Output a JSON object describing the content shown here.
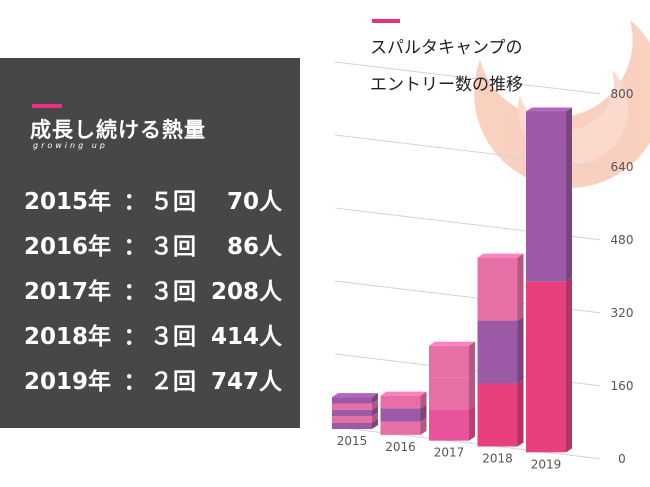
{
  "panel": {
    "title": "成長し続ける熱量",
    "subtitle": "growing up",
    "stats": [
      {
        "year": "2015年",
        "sep": "：",
        "count": "５回",
        "people": "70人"
      },
      {
        "year": "2016年",
        "sep": "：",
        "count": "３回",
        "people": "86人"
      },
      {
        "year": "2017年",
        "sep": "：",
        "count": "３回",
        "people": "208人"
      },
      {
        "year": "2018年",
        "sep": "：",
        "count": "３回",
        "people": "414人"
      },
      {
        "year": "2019年",
        "sep": "：",
        "count": "２回",
        "people": "747人"
      }
    ]
  },
  "chart_data": {
    "type": "bar",
    "stacked": true,
    "title_line1": "スパルタキャンプの",
    "title_line2": "エントリー数の推移",
    "categories": [
      "2015",
      "2016",
      "2017",
      "2018",
      "2019"
    ],
    "totals": [
      70,
      86,
      208,
      414,
      747
    ],
    "segments": [
      [
        {
          "value": 14,
          "color": "#9b59a6"
        },
        {
          "value": 14,
          "color": "#e86fa5"
        },
        {
          "value": 14,
          "color": "#9b59a6"
        },
        {
          "value": 14,
          "color": "#e86fa5"
        },
        {
          "value": 14,
          "color": "#9b59a6"
        }
      ],
      [
        {
          "value": 29,
          "color": "#e86fa5"
        },
        {
          "value": 29,
          "color": "#9b59a6"
        },
        {
          "value": 28,
          "color": "#e86fa5"
        }
      ],
      [
        {
          "value": 69,
          "color": "#e8539a"
        },
        {
          "value": 69,
          "color": "#e86fa5"
        },
        {
          "value": 70,
          "color": "#e86fa5"
        }
      ],
      [
        {
          "value": 138,
          "color": "#e8407f"
        },
        {
          "value": 138,
          "color": "#9b59a6"
        },
        {
          "value": 138,
          "color": "#e86fa5"
        }
      ],
      [
        {
          "value": 374,
          "color": "#e8407f"
        },
        {
          "value": 373,
          "color": "#9b59a6"
        }
      ]
    ],
    "ylim": [
      0,
      800
    ],
    "yticks": [
      0,
      160,
      320,
      480,
      640,
      800
    ],
    "grid": true,
    "xlabel": "",
    "ylabel": ""
  }
}
